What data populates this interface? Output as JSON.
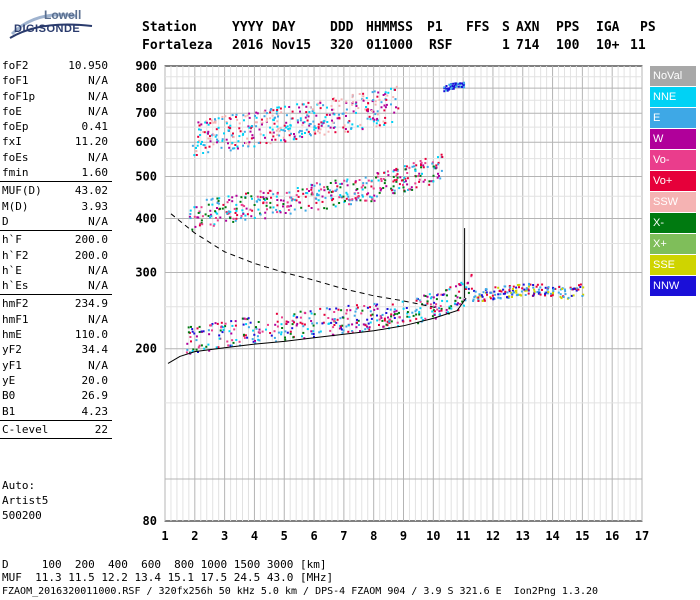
{
  "logo": {
    "line1": "Lowell",
    "line2": "DIGISONDE"
  },
  "header": {
    "labels": [
      "Station",
      "YYYY",
      "DAY",
      "DDD",
      "HHMMSS",
      "P1",
      "FFS",
      "S",
      "AXN",
      "PPS",
      "IGA",
      "PS"
    ],
    "values": [
      "Fortaleza",
      "2016",
      "Nov15",
      "320",
      "011000",
      "RSF",
      "1",
      "714",
      "100",
      "10+",
      "11"
    ]
  },
  "params": [
    {
      "k": "foF2",
      "v": "10.950"
    },
    {
      "k": "foF1",
      "v": "N/A"
    },
    {
      "k": "foF1p",
      "v": "N/A"
    },
    {
      "k": "foE",
      "v": "N/A"
    },
    {
      "k": "foEp",
      "v": "0.41"
    },
    {
      "k": "fxI",
      "v": "11.20"
    },
    {
      "k": "foEs",
      "v": "N/A"
    },
    {
      "k": "fmin",
      "v": "1.60"
    },
    {
      "k": "MUF(D)",
      "v": "43.02"
    },
    {
      "k": "M(D)",
      "v": "3.93"
    },
    {
      "k": "D",
      "v": "N/A"
    },
    {
      "k": "h`F",
      "v": "200.0"
    },
    {
      "k": "h`F2",
      "v": "200.0"
    },
    {
      "k": "h`E",
      "v": "N/A"
    },
    {
      "k": "h`Es",
      "v": "N/A"
    },
    {
      "k": "hmF2",
      "v": "234.9"
    },
    {
      "k": "hmF1",
      "v": "N/A"
    },
    {
      "k": "hmE",
      "v": "110.0"
    },
    {
      "k": "yF2",
      "v": "34.4"
    },
    {
      "k": "yF1",
      "v": "N/A"
    },
    {
      "k": "yE",
      "v": "20.0"
    },
    {
      "k": "B0",
      "v": "26.9"
    },
    {
      "k": "B1",
      "v": "4.23"
    },
    {
      "k": "C-level",
      "v": "22"
    }
  ],
  "auto": [
    "Auto:",
    "Artist5",
    "500200"
  ],
  "legend": [
    {
      "label": "NoVal",
      "color": "#a8a8a8"
    },
    {
      "label": "NNE",
      "color": "#00d2f5"
    },
    {
      "label": "E",
      "color": "#3ea8e6"
    },
    {
      "label": "W",
      "color": "#b0009a"
    },
    {
      "label": "Vo-",
      "color": "#ea3d8c"
    },
    {
      "label": "Vo+",
      "color": "#e6003a"
    },
    {
      "label": "SSW",
      "color": "#f5b3b3"
    },
    {
      "label": "X-",
      "color": "#007a10"
    },
    {
      "label": "X+",
      "color": "#7fbe5a"
    },
    {
      "label": "SSE",
      "color": "#cfd400"
    },
    {
      "label": "NNW",
      "color": "#1a0fd8"
    }
  ],
  "footer": {
    "line1": "D     100  200  400  600  800 1000 1500 3000 [km]",
    "line2": "MUF  11.3 11.5 12.2 13.4 15.1 17.5 24.5 43.0 [MHz]",
    "line3": "FZAOM_2016320011000.RSF / 320fx256h 50 kHz 5.0 km / DPS-4 FZAOM 904 / 3.9 S 321.6 E  Ion2Png 1.3.20"
  },
  "chart_data": {
    "type": "scatter",
    "xlim": [
      1,
      17
    ],
    "ylim": [
      80,
      900
    ],
    "y_scale": "log",
    "xticks": [
      "1",
      "2",
      "3",
      "4",
      "5",
      "6",
      "7",
      "8",
      "9",
      "10",
      "11",
      "12",
      "13",
      "14",
      "15",
      "16",
      "17"
    ],
    "yticks": [
      "80",
      "200",
      "300",
      "400",
      "500",
      "600",
      "700",
      "800",
      "900"
    ],
    "grid": true,
    "traces": [
      {
        "name": "F2 O-trace band",
        "x": [
          1.7,
          2,
          3,
          4,
          5,
          6,
          7,
          8,
          9,
          10,
          10.5,
          11,
          11.3
        ],
        "y": [
          210,
          212,
          217,
          222,
          226,
          230,
          234,
          238,
          244,
          252,
          258,
          268,
          280
        ]
      },
      {
        "name": "F2 second hop band",
        "x": [
          1.8,
          2,
          3,
          4,
          5,
          6,
          7,
          8,
          9,
          10,
          10.3
        ],
        "y": [
          405,
          410,
          420,
          430,
          440,
          450,
          462,
          475,
          495,
          520,
          535
        ]
      },
      {
        "name": "F2 third hop band",
        "x": [
          1.9,
          2,
          3,
          4,
          5,
          6,
          7,
          8,
          8.8
        ],
        "y": [
          610,
          615,
          630,
          648,
          665,
          680,
          700,
          720,
          740
        ]
      },
      {
        "name": "Spread-F blobs",
        "x": [
          11.3,
          12,
          12.5,
          13,
          13.5,
          14,
          14.5,
          15
        ],
        "y": [
          265,
          270,
          272,
          275,
          275,
          272,
          270,
          275
        ]
      },
      {
        "name": "Far echo",
        "x": [
          10.3,
          10.5,
          10.8,
          11
        ],
        "y": [
          800,
          808,
          815,
          820
        ]
      }
    ],
    "lines": [
      {
        "name": "profile solid",
        "x": [
          1.1,
          1.5,
          2,
          3,
          4,
          5,
          6,
          7,
          8,
          9,
          10,
          10.8,
          11.1
        ],
        "y": [
          185,
          192,
          197,
          201,
          205,
          208,
          212,
          216,
          220,
          226,
          235,
          245,
          262
        ]
      },
      {
        "name": "profile dashed",
        "x": [
          1.2,
          2,
          3,
          4,
          5,
          6,
          7,
          8,
          9,
          10.2
        ],
        "y": [
          410,
          370,
          335,
          315,
          300,
          288,
          275,
          265,
          258,
          248
        ]
      },
      {
        "name": "critical vertical",
        "x": [
          11.05,
          11.05
        ],
        "y": [
          262,
          380
        ]
      }
    ]
  }
}
